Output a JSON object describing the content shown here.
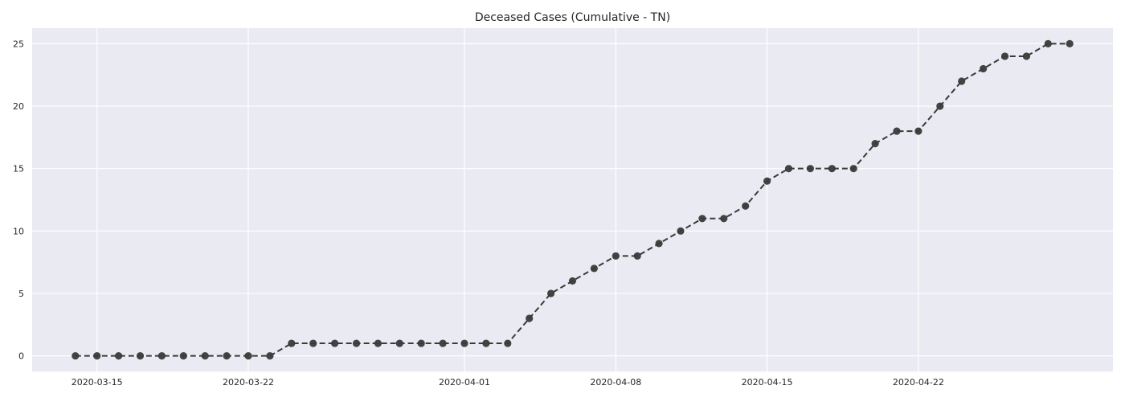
{
  "chart_data": {
    "type": "line",
    "title": "Deceased Cases (Cumulative - TN)",
    "xlabel": "",
    "ylabel": "",
    "x_type": "date",
    "x": [
      "2020-03-14",
      "2020-03-15",
      "2020-03-16",
      "2020-03-17",
      "2020-03-18",
      "2020-03-19",
      "2020-03-20",
      "2020-03-21",
      "2020-03-22",
      "2020-03-23",
      "2020-03-24",
      "2020-03-25",
      "2020-03-26",
      "2020-03-27",
      "2020-03-28",
      "2020-03-29",
      "2020-03-30",
      "2020-03-31",
      "2020-04-01",
      "2020-04-02",
      "2020-04-03",
      "2020-04-04",
      "2020-04-05",
      "2020-04-06",
      "2020-04-07",
      "2020-04-08",
      "2020-04-09",
      "2020-04-10",
      "2020-04-11",
      "2020-04-12",
      "2020-04-13",
      "2020-04-14",
      "2020-04-15",
      "2020-04-16",
      "2020-04-17",
      "2020-04-18",
      "2020-04-19",
      "2020-04-20",
      "2020-04-21",
      "2020-04-22",
      "2020-04-23",
      "2020-04-24",
      "2020-04-25",
      "2020-04-26",
      "2020-04-27",
      "2020-04-28",
      "2020-04-29"
    ],
    "series": [
      {
        "values": [
          0,
          0,
          0,
          0,
          0,
          0,
          0,
          0,
          0,
          0,
          1,
          1,
          1,
          1,
          1,
          1,
          1,
          1,
          1,
          1,
          1,
          3,
          5,
          6,
          7,
          8,
          8,
          9,
          10,
          11,
          11,
          12,
          14,
          15,
          15,
          15,
          15,
          17,
          18,
          18,
          20,
          22,
          23,
          24,
          24,
          25,
          25
        ],
        "color": "#3a3a3a",
        "line_style": "dashed",
        "marker": "circle"
      }
    ],
    "xticks": [
      "2020-03-15",
      "2020-03-22",
      "2020-04-01",
      "2020-04-08",
      "2020-04-15",
      "2020-04-22"
    ],
    "yticks": [
      0,
      5,
      10,
      15,
      20,
      25
    ],
    "xlim": [
      "2020-03-12",
      "2020-05-01"
    ],
    "ylim": [
      -1.25,
      26.25
    ],
    "grid": true,
    "background_color": "#eaeaf2",
    "grid_color": "#ffffff",
    "legend": "none"
  }
}
